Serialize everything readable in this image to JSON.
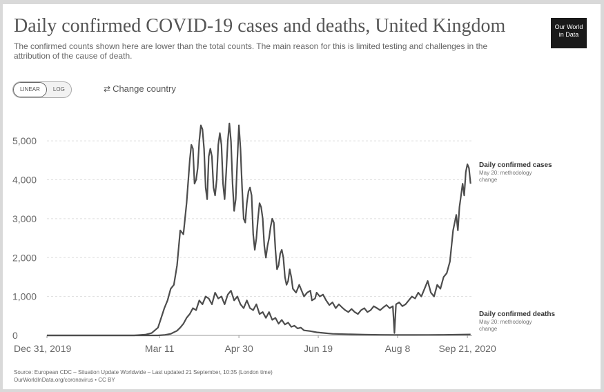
{
  "header": {
    "title": "Daily confirmed COVID-19 cases and deaths, United Kingdom",
    "subtitle": "The confirmed counts shown here are lower than the total counts. The main reason for this is limited testing and challenges in the attribution of the cause of death.",
    "logo_line1": "Our World",
    "logo_line2": "in Data"
  },
  "controls": {
    "linear_label": "LINEAR",
    "log_label": "LOG",
    "change_country_label": "Change country",
    "change_country_icon": "swap-icon"
  },
  "chart_data": {
    "type": "line",
    "x_tick_labels": [
      "Dec 31, 2019",
      "Mar 11",
      "Apr 30",
      "Jun 19",
      "Aug 8",
      "Sep 21, 2020"
    ],
    "x_tick_days": [
      0,
      71,
      121,
      171,
      221,
      265
    ],
    "y_tick_labels": [
      "0",
      "1,000",
      "2,000",
      "3,000",
      "4,000",
      "5,000"
    ],
    "y_tick_values": [
      0,
      1000,
      2000,
      3000,
      4000,
      5000
    ],
    "ylim": [
      0,
      5500
    ],
    "grid": "horizontal dashed",
    "series": [
      {
        "name": "Daily confirmed cases",
        "note": "May 20: methodology change",
        "color": "#4d4d4d",
        "points": [
          [
            0,
            0
          ],
          [
            40,
            0
          ],
          [
            55,
            0
          ],
          [
            62,
            20
          ],
          [
            66,
            60
          ],
          [
            70,
            200
          ],
          [
            72,
            450
          ],
          [
            74,
            700
          ],
          [
            76,
            900
          ],
          [
            78,
            1200
          ],
          [
            80,
            1300
          ],
          [
            82,
            1800
          ],
          [
            84,
            2700
          ],
          [
            86,
            2600
          ],
          [
            88,
            3400
          ],
          [
            90,
            4500
          ],
          [
            91,
            4900
          ],
          [
            92,
            4800
          ],
          [
            93,
            3900
          ],
          [
            94,
            4000
          ],
          [
            95,
            4300
          ],
          [
            96,
            5000
          ],
          [
            97,
            5400
          ],
          [
            98,
            5300
          ],
          [
            99,
            4800
          ],
          [
            100,
            3800
          ],
          [
            101,
            3500
          ],
          [
            102,
            4600
          ],
          [
            103,
            4800
          ],
          [
            104,
            4600
          ],
          [
            105,
            3800
          ],
          [
            106,
            3600
          ],
          [
            107,
            4000
          ],
          [
            108,
            4900
          ],
          [
            109,
            5200
          ],
          [
            110,
            4900
          ],
          [
            111,
            3900
          ],
          [
            112,
            3500
          ],
          [
            113,
            4200
          ],
          [
            114,
            5000
          ],
          [
            115,
            5450
          ],
          [
            116,
            5000
          ],
          [
            117,
            3900
          ],
          [
            118,
            3200
          ],
          [
            119,
            3500
          ],
          [
            120,
            4500
          ],
          [
            121,
            5400
          ],
          [
            122,
            4800
          ],
          [
            123,
            3800
          ],
          [
            124,
            3000
          ],
          [
            125,
            2900
          ],
          [
            126,
            3400
          ],
          [
            127,
            3700
          ],
          [
            128,
            3800
          ],
          [
            129,
            3600
          ],
          [
            130,
            2600
          ],
          [
            131,
            2200
          ],
          [
            132,
            2500
          ],
          [
            133,
            3000
          ],
          [
            134,
            3400
          ],
          [
            135,
            3300
          ],
          [
            136,
            3000
          ],
          [
            137,
            2300
          ],
          [
            138,
            2000
          ],
          [
            139,
            2300
          ],
          [
            140,
            2500
          ],
          [
            141,
            2800
          ],
          [
            142,
            3000
          ],
          [
            143,
            2900
          ],
          [
            144,
            2200
          ],
          [
            145,
            1700
          ],
          [
            146,
            1800
          ],
          [
            147,
            2100
          ],
          [
            148,
            2200
          ],
          [
            149,
            2000
          ],
          [
            150,
            1500
          ],
          [
            151,
            1300
          ],
          [
            152,
            1400
          ],
          [
            153,
            1700
          ],
          [
            154,
            1500
          ],
          [
            155,
            1200
          ],
          [
            157,
            1100
          ],
          [
            159,
            1300
          ],
          [
            160,
            1200
          ],
          [
            162,
            1000
          ],
          [
            164,
            1100
          ],
          [
            166,
            1150
          ],
          [
            167,
            900
          ],
          [
            169,
            950
          ],
          [
            170,
            1100
          ],
          [
            172,
            1000
          ],
          [
            174,
            1050
          ],
          [
            176,
            900
          ],
          [
            178,
            780
          ],
          [
            180,
            850
          ],
          [
            182,
            700
          ],
          [
            184,
            800
          ],
          [
            186,
            720
          ],
          [
            188,
            650
          ],
          [
            190,
            600
          ],
          [
            192,
            680
          ],
          [
            194,
            600
          ],
          [
            196,
            550
          ],
          [
            198,
            650
          ],
          [
            200,
            700
          ],
          [
            202,
            600
          ],
          [
            204,
            650
          ],
          [
            206,
            750
          ],
          [
            208,
            700
          ],
          [
            210,
            650
          ],
          [
            212,
            720
          ],
          [
            214,
            780
          ],
          [
            216,
            700
          ],
          [
            218,
            750
          ],
          [
            219,
            60
          ],
          [
            220,
            800
          ],
          [
            222,
            850
          ],
          [
            224,
            750
          ],
          [
            226,
            800
          ],
          [
            228,
            900
          ],
          [
            230,
            1000
          ],
          [
            232,
            950
          ],
          [
            234,
            1100
          ],
          [
            236,
            1000
          ],
          [
            238,
            1200
          ],
          [
            240,
            1400
          ],
          [
            242,
            1100
          ],
          [
            244,
            1000
          ],
          [
            246,
            1300
          ],
          [
            248,
            1200
          ],
          [
            250,
            1500
          ],
          [
            252,
            1600
          ],
          [
            254,
            1900
          ],
          [
            256,
            2700
          ],
          [
            258,
            3100
          ],
          [
            259,
            2700
          ],
          [
            260,
            3300
          ],
          [
            262,
            3900
          ],
          [
            263,
            3600
          ],
          [
            264,
            4200
          ],
          [
            265,
            4400
          ],
          [
            266,
            4300
          ],
          [
            267,
            3900
          ]
        ]
      },
      {
        "name": "Daily confirmed deaths",
        "note": "May 20: methodology change",
        "color": "#4d4d4d",
        "points": [
          [
            0,
            0
          ],
          [
            70,
            0
          ],
          [
            74,
            10
          ],
          [
            78,
            40
          ],
          [
            82,
            120
          ],
          [
            84,
            200
          ],
          [
            86,
            300
          ],
          [
            88,
            450
          ],
          [
            90,
            550
          ],
          [
            92,
            700
          ],
          [
            94,
            650
          ],
          [
            96,
            900
          ],
          [
            98,
            800
          ],
          [
            100,
            1000
          ],
          [
            102,
            950
          ],
          [
            104,
            800
          ],
          [
            106,
            1100
          ],
          [
            108,
            950
          ],
          [
            110,
            1000
          ],
          [
            112,
            800
          ],
          [
            114,
            1050
          ],
          [
            116,
            1150
          ],
          [
            118,
            900
          ],
          [
            120,
            1000
          ],
          [
            122,
            800
          ],
          [
            124,
            700
          ],
          [
            126,
            900
          ],
          [
            128,
            700
          ],
          [
            130,
            650
          ],
          [
            132,
            800
          ],
          [
            134,
            550
          ],
          [
            136,
            600
          ],
          [
            138,
            450
          ],
          [
            140,
            600
          ],
          [
            142,
            400
          ],
          [
            144,
            450
          ],
          [
            146,
            300
          ],
          [
            148,
            400
          ],
          [
            150,
            280
          ],
          [
            152,
            330
          ],
          [
            154,
            220
          ],
          [
            156,
            250
          ],
          [
            158,
            180
          ],
          [
            160,
            200
          ],
          [
            162,
            130
          ],
          [
            166,
            110
          ],
          [
            170,
            80
          ],
          [
            175,
            60
          ],
          [
            180,
            40
          ],
          [
            190,
            30
          ],
          [
            200,
            20
          ],
          [
            210,
            15
          ],
          [
            220,
            10
          ],
          [
            230,
            10
          ],
          [
            240,
            12
          ],
          [
            250,
            15
          ],
          [
            260,
            20
          ],
          [
            267,
            25
          ]
        ]
      }
    ]
  },
  "footer": {
    "source_line": "Source: European CDC – Situation Update Worldwide – Last updated 21 September, 10:35 (London time)",
    "url_line": "OurWorldInData.org/coronavirus • CC BY"
  }
}
